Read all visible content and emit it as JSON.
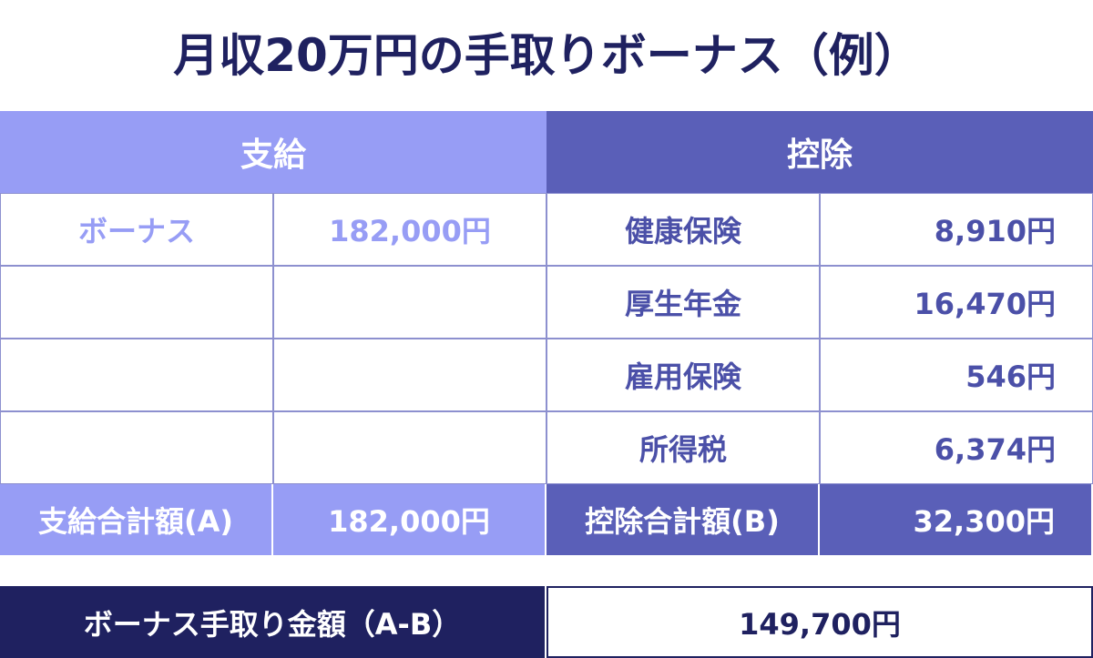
{
  "title": "月収20万円の手取りボーナス（例）",
  "table": {
    "headers": [
      "支給",
      "控除"
    ],
    "rows": [
      [
        "ボーナス",
        "182,000円",
        "健康保険",
        "8,910円"
      ],
      [
        "",
        "",
        "厚生年金",
        "16,470円"
      ],
      [
        "",
        "",
        "雇用保険",
        "546円"
      ],
      [
        "",
        "",
        "所得税",
        "6,374円"
      ]
    ],
    "totals": [
      "支給合計額(A)",
      "182,000円",
      "控除合計額(B)",
      "32,300円"
    ]
  },
  "result": {
    "label": "ボーナス手取り金額（A-B）",
    "value": "149,700円"
  }
}
